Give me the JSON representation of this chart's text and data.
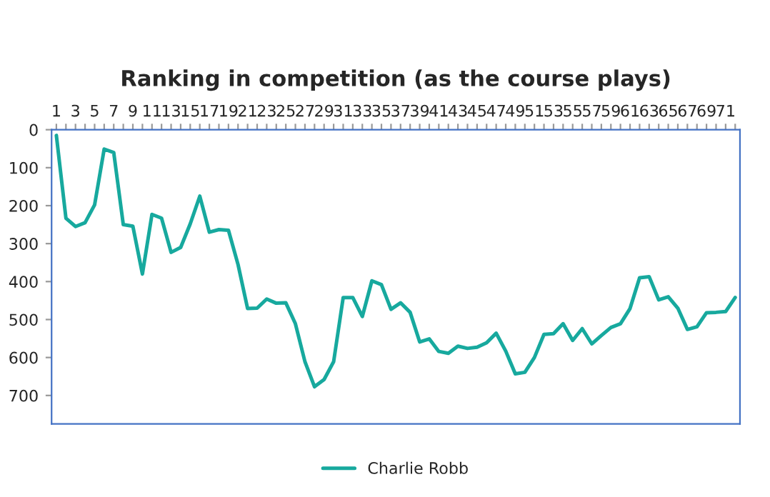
{
  "chart_data": {
    "type": "line",
    "title": "Ranking in competition (as the course plays)",
    "categories": [
      "1",
      null,
      "3",
      null,
      "5",
      null,
      "7",
      null,
      "9",
      null,
      "11",
      null,
      "13",
      null,
      "15",
      null,
      "17",
      null,
      "19",
      null,
      "21",
      null,
      "23",
      null,
      "25",
      null,
      "27",
      null,
      "29",
      null,
      "31",
      null,
      "33",
      null,
      "35",
      null,
      "37",
      null,
      "39",
      null,
      "41",
      null,
      "43",
      null,
      "45",
      null,
      "47",
      null,
      "49",
      null,
      "51",
      null,
      "53",
      null,
      "55",
      null,
      "57",
      null,
      "59",
      null,
      "61",
      null,
      "63",
      null,
      "65",
      null,
      "67",
      null,
      "69",
      null,
      "71",
      null
    ],
    "series": [
      {
        "name": "Charlie Robb",
        "color": "#17a99e",
        "values": [
          15,
          233,
          255,
          245,
          198,
          51,
          60,
          250,
          254,
          380,
          223,
          233,
          323,
          310,
          248,
          175,
          270,
          263,
          265,
          355,
          471,
          470,
          446,
          457,
          456,
          511,
          611,
          677,
          658,
          611,
          442,
          442,
          492,
          398,
          408,
          473,
          456,
          481,
          559,
          551,
          584,
          589,
          570,
          576,
          573,
          561,
          536,
          583,
          643,
          639,
          600,
          539,
          537,
          511,
          555,
          524,
          564,
          542,
          521,
          511,
          471,
          390,
          387,
          448,
          440,
          470,
          526,
          519,
          482,
          481,
          479,
          442
        ]
      }
    ],
    "ylim": [
      775,
      0
    ],
    "yticks": [
      0,
      100,
      200,
      300,
      400,
      500,
      600,
      700
    ],
    "grid": false,
    "legend": "bottom",
    "marker": "none",
    "line_style": "solid"
  }
}
